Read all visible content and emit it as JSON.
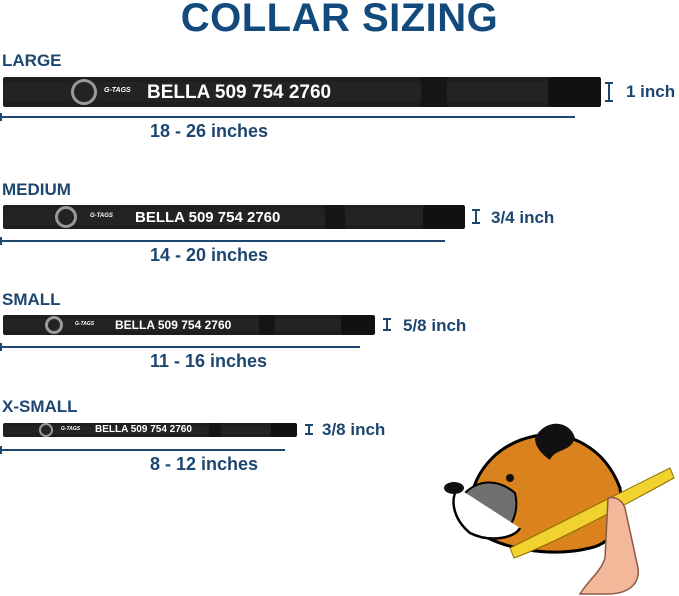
{
  "title": "COLLAR SIZING",
  "sizes": [
    {
      "label": "LARGE",
      "name_text": "BELLA 509 754 2760",
      "brand": "G-TAGS",
      "width": "1 inch",
      "range": "18 - 26 inches"
    },
    {
      "label": "MEDIUM",
      "name_text": "BELLA 509 754 2760",
      "brand": "G-TAGS",
      "width": "3/4 inch",
      "range": "14 - 20 inches"
    },
    {
      "label": "SMALL",
      "name_text": "BELLA 509 754 2760",
      "brand": "G-TAGS",
      "width": "5/8 inch",
      "range": "11 - 16 inches"
    },
    {
      "label": "X-SMALL",
      "name_text": "BELLA 509 754 2760",
      "brand": "G-TAGS",
      "width": "3/8 inch",
      "range": "8 - 12 inches"
    }
  ],
  "colors": {
    "heading": "#124a7c",
    "text": "#1d4670",
    "collar": "#1e1e1e",
    "dog_orange": "#d9821e",
    "tape": "#f2d22e"
  },
  "illustration": "dog-neck-measuring-icon"
}
